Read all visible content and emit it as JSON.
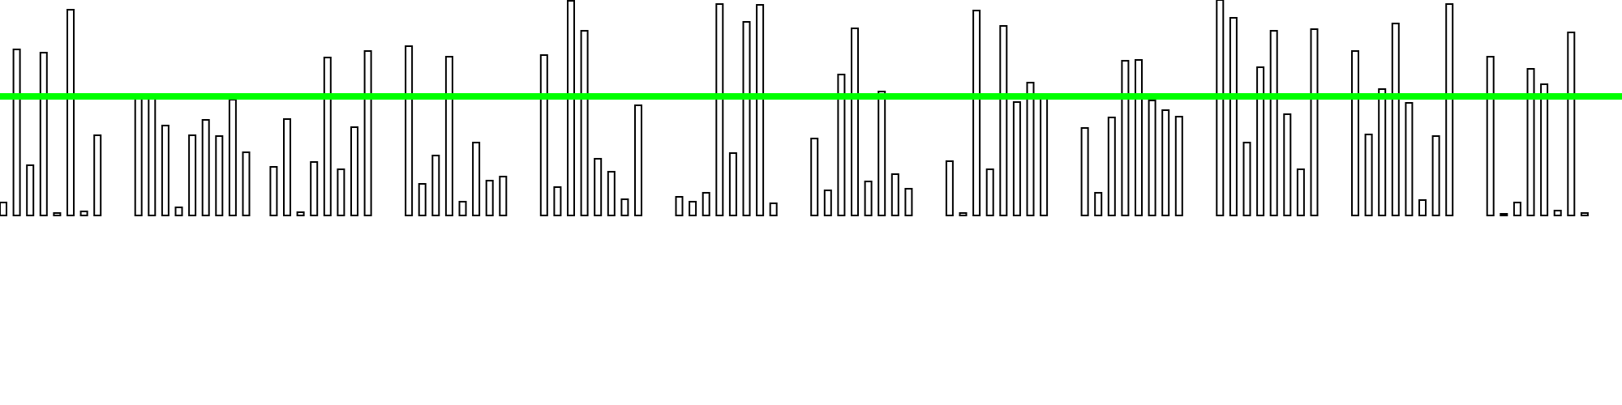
{
  "chart_data": {
    "type": "bar",
    "title": "",
    "xlabel": "",
    "ylabel": "",
    "ylim": [
      0,
      266
    ],
    "grid": false,
    "legend": false,
    "bar_fill": "#ffffff",
    "bar_stroke": "#000000",
    "threshold": {
      "value": 147,
      "color": "#00ff00"
    },
    "groups": [
      {
        "values": [
          16,
          205,
          62,
          201,
          3,
          254,
          5,
          99
        ]
      },
      {
        "values": [
          147,
          146,
          111,
          10,
          99,
          118,
          98,
          143,
          78
        ]
      },
      {
        "values": [
          60,
          119,
          4,
          66,
          195,
          57,
          109,
          203
        ]
      },
      {
        "values": [
          209,
          39,
          74,
          196,
          17,
          90,
          43,
          48
        ]
      },
      {
        "values": [
          198,
          35,
          265,
          228,
          70,
          54,
          20,
          136
        ]
      },
      {
        "values": [
          23,
          17,
          28,
          261,
          77,
          239,
          260,
          15
        ]
      },
      {
        "values": [
          95,
          31,
          174,
          231,
          42,
          153,
          51,
          33
        ]
      },
      {
        "values": [
          67,
          3,
          253,
          57,
          234,
          140,
          164,
          145
        ]
      },
      {
        "values": [
          108,
          28,
          121,
          191,
          192,
          142,
          130,
          122
        ]
      },
      {
        "values": [
          266,
          244,
          90,
          183,
          228,
          125,
          57,
          230
        ]
      },
      {
        "values": [
          203,
          100,
          156,
          237,
          139,
          19,
          98,
          261
        ]
      },
      {
        "values": [
          196,
          0,
          16,
          181,
          162,
          6,
          226,
          3
        ]
      }
    ]
  }
}
